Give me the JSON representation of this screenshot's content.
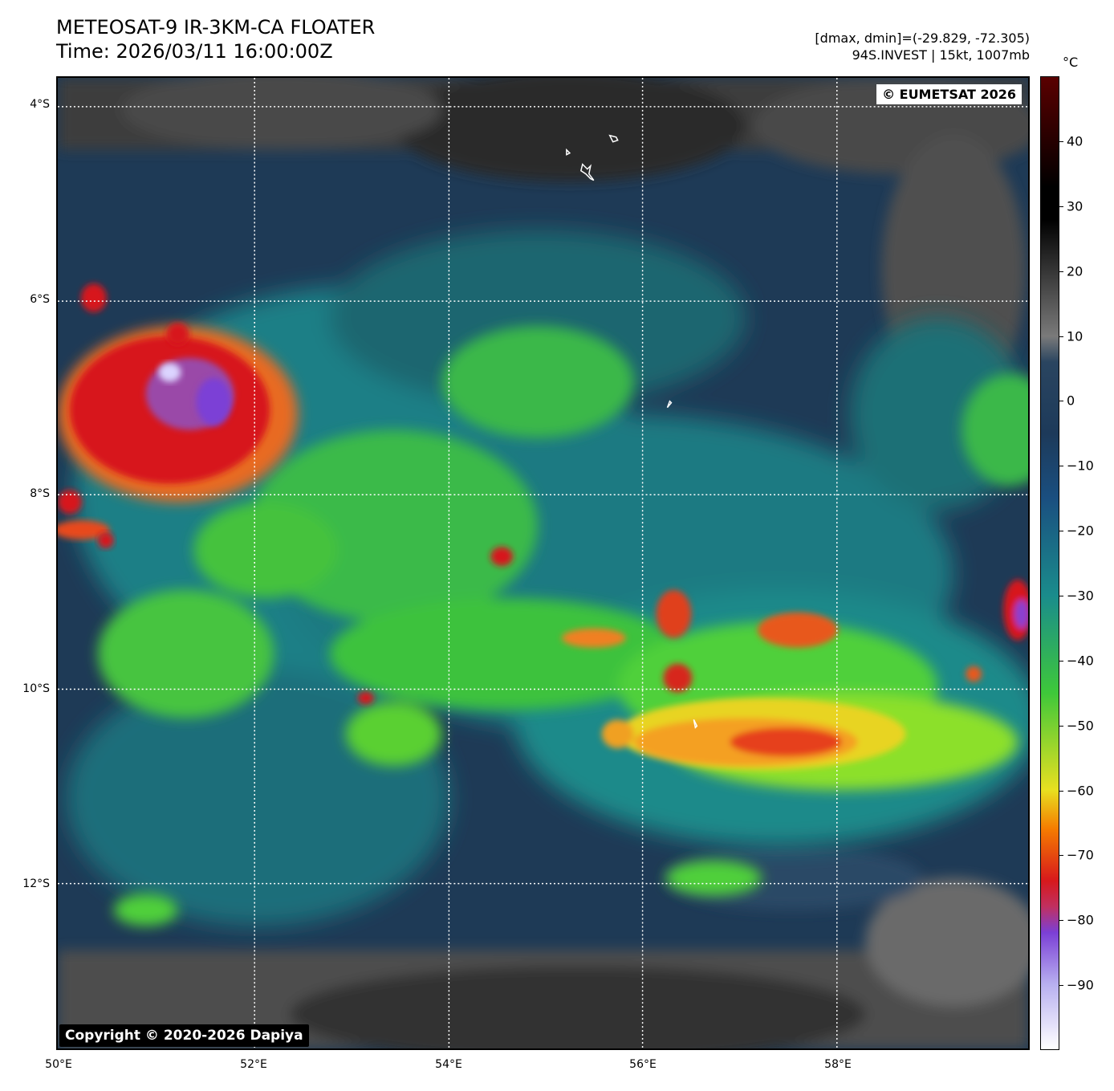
{
  "header": {
    "title_line1": "METEOSAT-9 IR-3KM-CA FLOATER",
    "title_line2": "Time: 2026/03/11 16:00:00Z",
    "meta_line1": "[dmax, dmin]=(-29.829, -72.305)",
    "meta_line2": "94S.INVEST | 15kt, 1007mb"
  },
  "map": {
    "lat_labels": [
      "4°S",
      "6°S",
      "8°S",
      "10°S",
      "12°S"
    ],
    "lon_labels": [
      "50°E",
      "52°E",
      "54°E",
      "56°E",
      "58°E"
    ],
    "eumetsat_badge": "© EUMETSAT 2026",
    "copyright_badge": "Copyright © 2020-2026 Dapiya"
  },
  "colorbar": {
    "unit": "°C",
    "tick_labels": [
      "40",
      "30",
      "20",
      "10",
      "0",
      "−10",
      "−20",
      "−30",
      "−40",
      "−50",
      "−60",
      "−70",
      "−80",
      "−90"
    ],
    "range": [
      -100,
      50
    ],
    "colors": {
      "very_cold": "#ffffff",
      "purple": "#7b3fd6",
      "red": "#d7191c",
      "orange": "#f57c00",
      "yellow": "#e8e020",
      "green": "#3ec83a",
      "teal": "#1a8c8c",
      "dark_blue": "#1d3a5a",
      "gray": "#7a7a7a",
      "black": "#000000",
      "dark_red": "#5a0000"
    }
  }
}
